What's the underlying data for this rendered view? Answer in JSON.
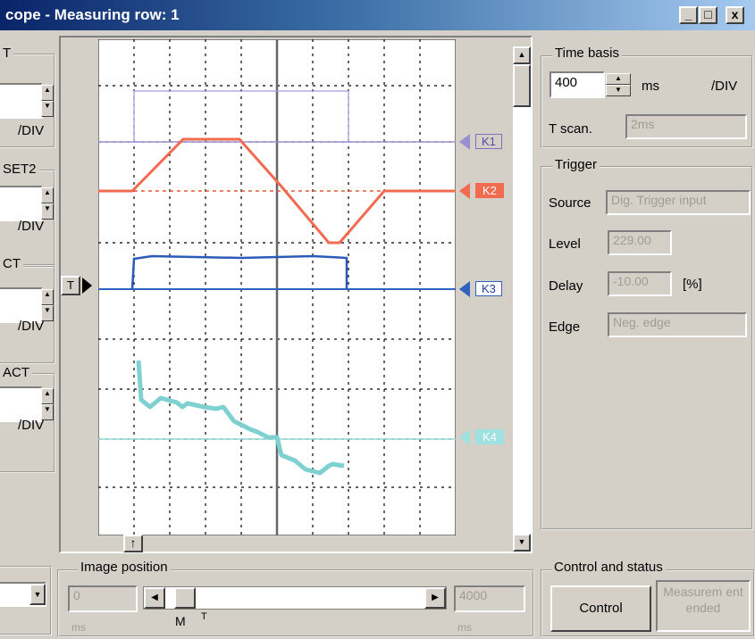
{
  "window": {
    "title": "cope - Measuring row: 1",
    "controls": [
      "_",
      "□",
      "x"
    ]
  },
  "left_panel": {
    "groups": [
      {
        "label": "T",
        "unit": "/DIV"
      },
      {
        "label": "SET2",
        "unit": "/DIV"
      },
      {
        "label": "CT",
        "unit": "/DIV"
      },
      {
        "label": "ACT",
        "unit": "/DIV"
      }
    ]
  },
  "scope": {
    "trigger_marker": "T",
    "channels": [
      {
        "label": "K1",
        "color": "#9a8fd0"
      },
      {
        "label": "K2",
        "color": "#f26a4f"
      },
      {
        "label": "K3",
        "color": "#3060c0"
      },
      {
        "label": "K4",
        "color": "#7fd0d0"
      }
    ],
    "bottom_marker": "↑"
  },
  "time_basis": {
    "legend": "Time basis",
    "value": "400",
    "unit_ms": "ms",
    "unit_div": "/DIV",
    "tscan_label": "T scan.",
    "tscan_value": "2ms"
  },
  "trigger": {
    "legend": "Trigger",
    "source_label": "Source",
    "source_value": "Dig. Trigger input",
    "level_label": "Level",
    "level_value": "229.00",
    "delay_label": "Delay",
    "delay_value": "-10.00",
    "delay_unit": "[%]",
    "edge_label": "Edge",
    "edge_value": "Neg. edge"
  },
  "image_position": {
    "legend": "Image position",
    "start_value": "0",
    "end_value": "4000",
    "start_unit": "ms",
    "end_unit": "ms",
    "m_label": "M",
    "t_label": "T"
  },
  "control_status": {
    "legend": "Control and status",
    "control_button": "Control",
    "status_text": "Measurem ent ended"
  }
}
